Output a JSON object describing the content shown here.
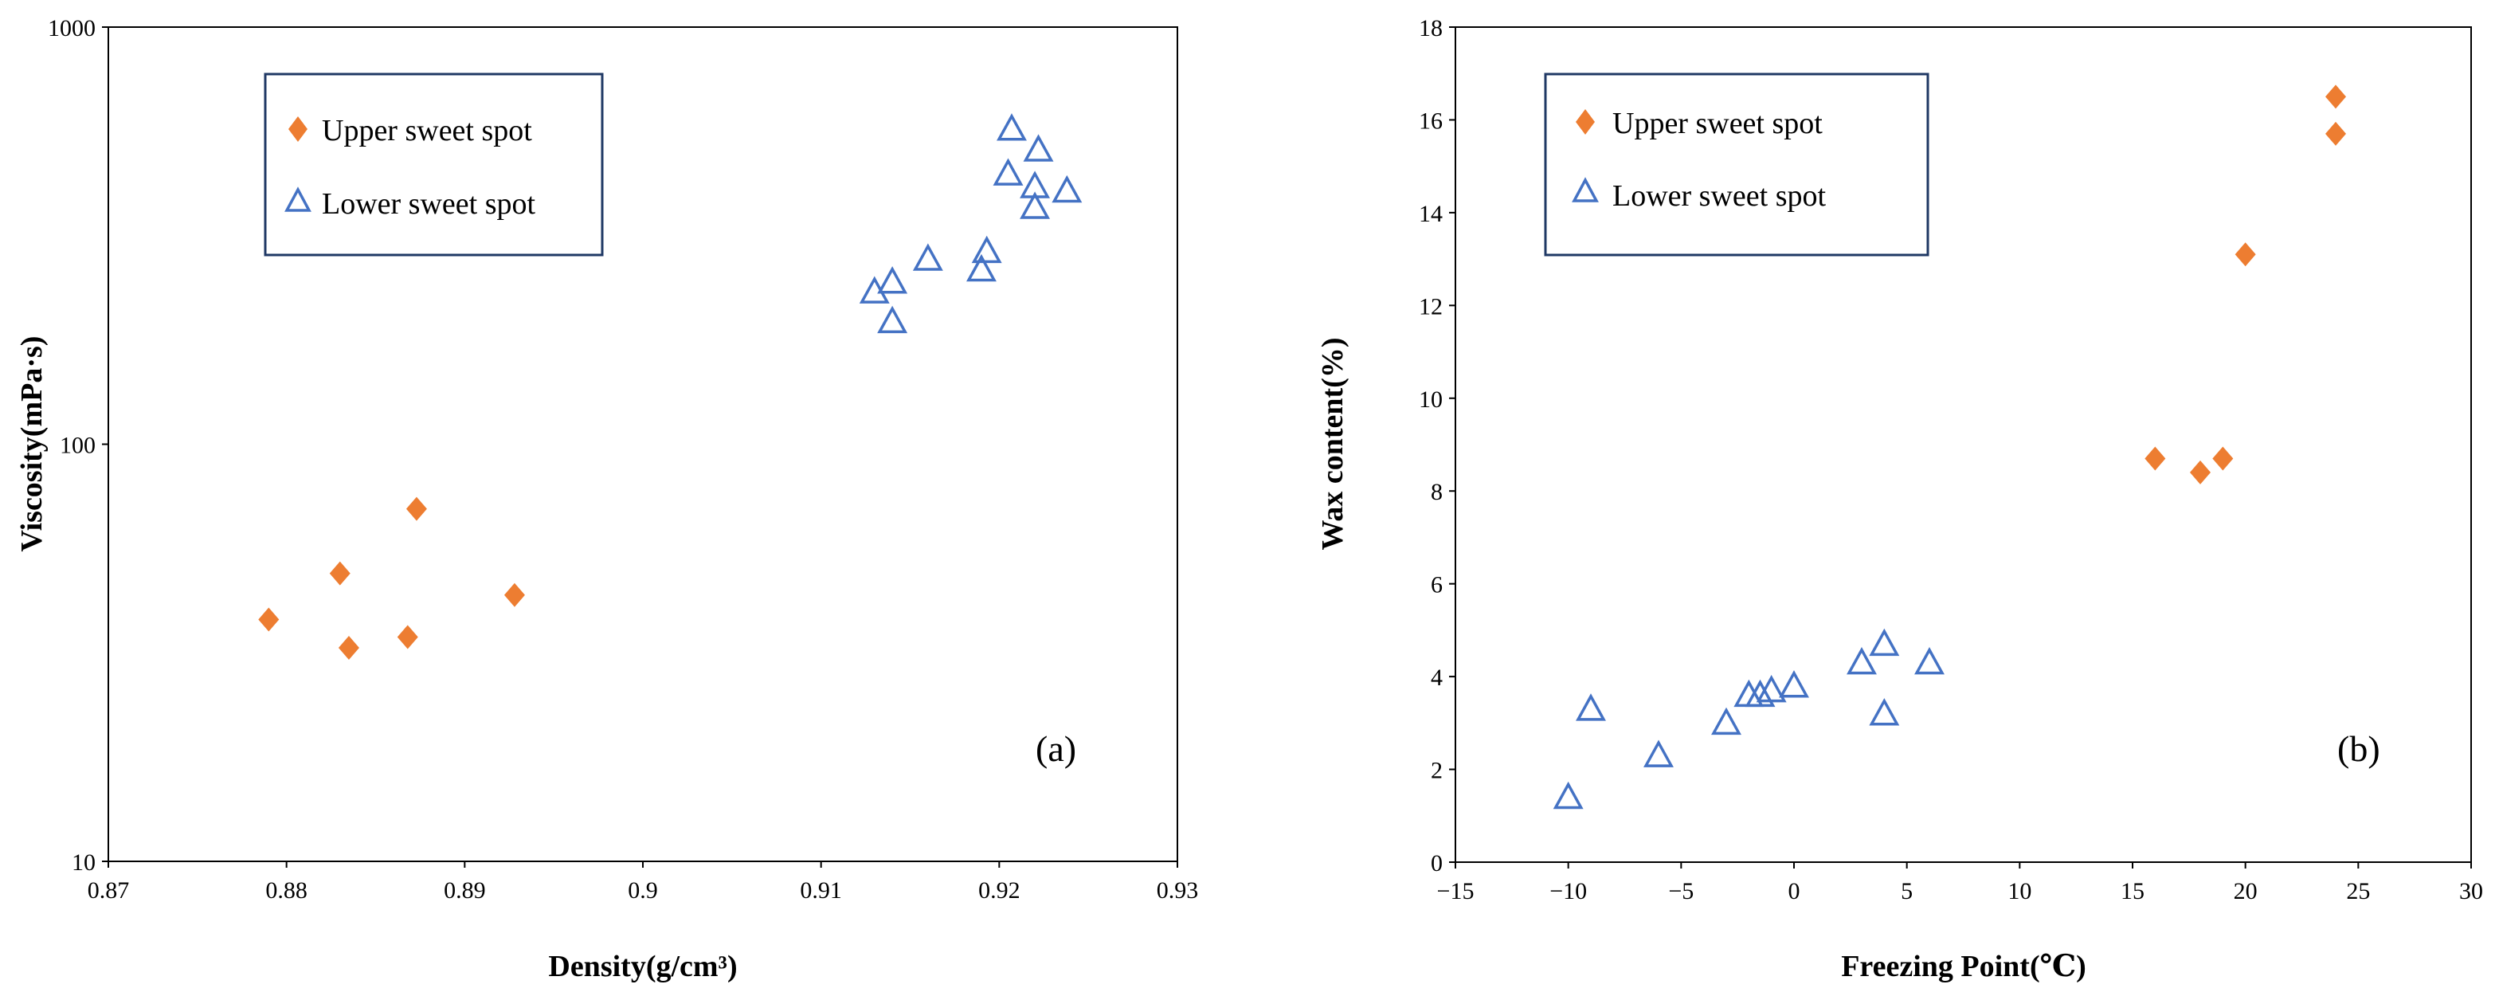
{
  "colors": {
    "upper": "#ED7D31",
    "lower": "#4472C4",
    "frame": "#000000",
    "legend_border": "#1F3864"
  },
  "chart_data": [
    {
      "id": "a",
      "type": "scatter",
      "panel_label": "(a)",
      "xlabel": "Density(g/cm³)",
      "ylabel": "Viscosity(mPa·s)",
      "xlim": [
        0.87,
        0.93
      ],
      "ylim": [
        10,
        1000
      ],
      "yscale": "log",
      "xticks": [
        0.87,
        0.88,
        0.89,
        0.9,
        0.91,
        0.92,
        0.93
      ],
      "xtick_labels": [
        "0.87",
        "0.88",
        "0.89",
        "0.9",
        "0.91",
        "0.92",
        "0.93"
      ],
      "yticks": [
        10,
        100,
        1000
      ],
      "ytick_labels": [
        "10",
        "100",
        "1000"
      ],
      "legend_position": "top-left",
      "series": [
        {
          "name": "Upper sweet spot",
          "marker": "diamond",
          "color_key": "upper",
          "x": [
            0.879,
            0.883,
            0.8835,
            0.8868,
            0.8873,
            0.8928
          ],
          "y": [
            38,
            49,
            32.5,
            34.5,
            70,
            43.5
          ]
        },
        {
          "name": "Lower sweet spot",
          "marker": "triangle",
          "color_key": "lower",
          "x": [
            0.913,
            0.914,
            0.914,
            0.916,
            0.919,
            0.9193,
            0.9205,
            0.9207,
            0.922,
            0.922,
            0.9222,
            0.9238
          ],
          "y": [
            232,
            245,
            197,
            278,
            262,
            290,
            445,
            570,
            370,
            415,
            508,
            405
          ]
        }
      ]
    },
    {
      "id": "b",
      "type": "scatter",
      "panel_label": "(b)",
      "xlabel": "Freezing Point(℃)",
      "ylabel": "Wax content(%)",
      "xlim": [
        -15,
        30
      ],
      "ylim": [
        0,
        18
      ],
      "yscale": "linear",
      "xticks": [
        -15,
        -10,
        -5,
        0,
        5,
        10,
        15,
        20,
        25,
        30
      ],
      "xtick_labels": [
        "−15",
        "−10",
        "−5",
        "0",
        "5",
        "10",
        "15",
        "20",
        "25",
        "30"
      ],
      "yticks": [
        0,
        2,
        4,
        6,
        8,
        10,
        12,
        14,
        16,
        18
      ],
      "ytick_labels": [
        "0",
        "2",
        "4",
        "6",
        "8",
        "10",
        "12",
        "14",
        "16",
        "18"
      ],
      "legend_position": "top-left",
      "series": [
        {
          "name": "Upper sweet spot",
          "marker": "diamond",
          "color_key": "upper",
          "x": [
            16,
            18,
            19,
            20,
            24,
            24
          ],
          "y": [
            8.7,
            8.4,
            8.7,
            13.1,
            15.7,
            16.5
          ]
        },
        {
          "name": "Lower sweet spot",
          "marker": "triangle",
          "color_key": "lower",
          "x": [
            -10,
            -9,
            -6,
            -3,
            -2,
            -1.5,
            -1,
            0,
            3,
            4,
            4,
            6
          ],
          "y": [
            1.4,
            3.3,
            2.3,
            3.0,
            3.6,
            3.6,
            3.7,
            3.8,
            4.3,
            4.7,
            3.2,
            4.3
          ]
        }
      ]
    }
  ]
}
